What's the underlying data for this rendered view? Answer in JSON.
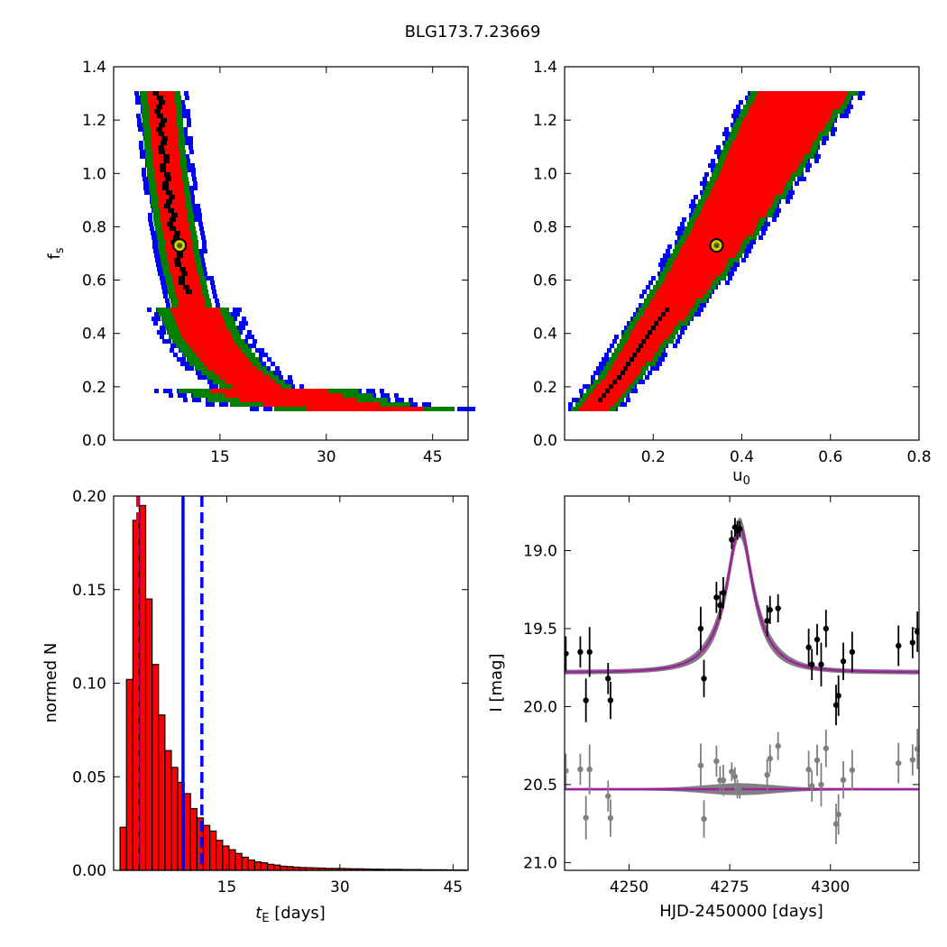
{
  "figure_title": "BLG173.7.23669",
  "chart_data": [
    {
      "id": "panel-fs-vs-tE",
      "type": "heatmap",
      "xlabel": "",
      "ylabel": "f_s",
      "xlim": [
        0,
        50
      ],
      "ylim": [
        0,
        1.4
      ],
      "xticks": [
        15,
        30,
        45
      ],
      "yticks": [
        0.0,
        0.2,
        0.4,
        0.6,
        0.8,
        1.0,
        1.2,
        1.4
      ],
      "ytick_labels": [
        "0.0",
        "0.2",
        "0.4",
        "0.6",
        "0.8",
        "1.0",
        "1.2",
        "1.4"
      ],
      "levels": [
        "black",
        "red",
        "green",
        "blue"
      ],
      "best_fit": {
        "x": 9.3,
        "y": 0.73
      },
      "ridge": [
        [
          6.5,
          1.31
        ],
        [
          7.5,
          1.0
        ],
        [
          8.6,
          0.8
        ],
        [
          9.6,
          0.65
        ],
        [
          11,
          0.5
        ],
        [
          13,
          0.38
        ],
        [
          16,
          0.28
        ],
        [
          20,
          0.2
        ],
        [
          26,
          0.15
        ],
        [
          32,
          0.12
        ],
        [
          40,
          0.115
        ],
        [
          46,
          0.105
        ]
      ]
    },
    {
      "id": "panel-fs-vs-u0",
      "type": "heatmap",
      "xlabel": "u_0",
      "ylabel": "",
      "xlim": [
        0.0,
        0.8
      ],
      "ylim": [
        0,
        1.4
      ],
      "xticks": [
        0.2,
        0.4,
        0.6,
        0.8
      ],
      "xtick_labels": [
        "0.2",
        "0.4",
        "0.6",
        "0.8"
      ],
      "yticks": [
        0.0,
        0.2,
        0.4,
        0.6,
        0.8,
        1.0,
        1.2,
        1.4
      ],
      "ytick_labels": [
        "0.0",
        "0.2",
        "0.4",
        "0.6",
        "0.8",
        "1.0",
        "1.2",
        "1.4"
      ],
      "levels": [
        "black",
        "red",
        "green",
        "blue"
      ],
      "best_fit": {
        "x": 0.343,
        "y": 0.73
      },
      "ridge": [
        [
          0.06,
          0.11
        ],
        [
          0.13,
          0.25
        ],
        [
          0.2,
          0.42
        ],
        [
          0.28,
          0.6
        ],
        [
          0.35,
          0.78
        ],
        [
          0.42,
          0.97
        ],
        [
          0.49,
          1.18
        ],
        [
          0.54,
          1.31
        ]
      ]
    },
    {
      "id": "panel-tE-histogram",
      "type": "bar",
      "xlabel": "t_E [days]",
      "ylabel": "normed N",
      "xlim": [
        0,
        47
      ],
      "ylim": [
        0,
        0.2
      ],
      "xticks": [
        15,
        30,
        45
      ],
      "yticks": [
        0.0,
        0.05,
        0.1,
        0.15,
        0.2
      ],
      "ytick_labels": [
        "0.00",
        "0.05",
        "0.10",
        "0.15",
        "0.20"
      ],
      "bin_width": 0.85,
      "bin_start": 0.85,
      "values": [
        0.023,
        0.102,
        0.187,
        0.195,
        0.145,
        0.11,
        0.083,
        0.064,
        0.055,
        0.047,
        0.041,
        0.033,
        0.028,
        0.024,
        0.021,
        0.016,
        0.013,
        0.011,
        0.009,
        0.007,
        0.0055,
        0.0045,
        0.004,
        0.0032,
        0.0028,
        0.0022,
        0.002,
        0.0017,
        0.0015,
        0.0014,
        0.0013,
        0.0012,
        0.001,
        0.001,
        0.001,
        0.0009,
        0.0008,
        0.0008,
        0.0007,
        0.0006,
        0.0006,
        0.0005,
        0.0005,
        0.0005,
        0.0004,
        0.0004,
        0.0004,
        0.0003,
        0.0003,
        0.0003,
        0.0003,
        0.0002,
        0.0002,
        0.0002
      ],
      "median": 9.2,
      "median_color": "#0000ff",
      "red_dashed": 3.2,
      "blue_dashed_low": 3.3,
      "blue_dashed_high": 11.7
    },
    {
      "id": "panel-lightcurve",
      "type": "scatter",
      "xlabel": "HJD-2450000 [days]",
      "ylabel": "I [mag]",
      "xlim": [
        4234,
        4322
      ],
      "ylim": [
        21.05,
        18.65
      ],
      "xticks": [
        4250,
        4275,
        4300
      ],
      "yticks": [
        19.0,
        19.5,
        20.0,
        20.5,
        21.0
      ],
      "ytick_labels": [
        "19.0",
        "19.5",
        "20.0",
        "20.5",
        "21.0"
      ],
      "model": {
        "baseline": 19.78,
        "peak": 18.85,
        "t0": 4277.5,
        "tE": 9.3,
        "u0": 0.343,
        "fs": 0.73
      },
      "residual_offset": 20.53,
      "observations": [
        {
          "t": 4234.3,
          "mag": 19.66,
          "err": 0.11
        },
        {
          "t": 4237.9,
          "mag": 19.65,
          "err": 0.1
        },
        {
          "t": 4239.3,
          "mag": 19.96,
          "err": 0.14
        },
        {
          "t": 4240.2,
          "mag": 19.65,
          "err": 0.16
        },
        {
          "t": 4244.8,
          "mag": 19.82,
          "err": 0.1
        },
        {
          "t": 4245.4,
          "mag": 19.96,
          "err": 0.12
        },
        {
          "t": 4267.8,
          "mag": 19.5,
          "err": 0.14
        },
        {
          "t": 4268.6,
          "mag": 19.82,
          "err": 0.12
        },
        {
          "t": 4271.7,
          "mag": 19.3,
          "err": 0.1
        },
        {
          "t": 4272.6,
          "mag": 19.35,
          "err": 0.09
        },
        {
          "t": 4273.4,
          "mag": 19.27,
          "err": 0.1
        },
        {
          "t": 4275.5,
          "mag": 18.93,
          "err": 0.06
        },
        {
          "t": 4276.3,
          "mag": 18.85,
          "err": 0.06
        },
        {
          "t": 4276.9,
          "mag": 18.87,
          "err": 0.06
        },
        {
          "t": 4277.5,
          "mag": 18.86,
          "err": 0.05
        },
        {
          "t": 4284.3,
          "mag": 19.45,
          "err": 0.1
        },
        {
          "t": 4285.0,
          "mag": 19.38,
          "err": 0.09
        },
        {
          "t": 4287.0,
          "mag": 19.37,
          "err": 0.09
        },
        {
          "t": 4294.6,
          "mag": 19.62,
          "err": 0.12
        },
        {
          "t": 4295.4,
          "mag": 19.73,
          "err": 0.1
        },
        {
          "t": 4296.7,
          "mag": 19.57,
          "err": 0.1
        },
        {
          "t": 4297.7,
          "mag": 19.73,
          "err": 0.14
        },
        {
          "t": 4298.9,
          "mag": 19.5,
          "err": 0.12
        },
        {
          "t": 4301.4,
          "mag": 19.99,
          "err": 0.13
        },
        {
          "t": 4302.0,
          "mag": 19.93,
          "err": 0.13
        },
        {
          "t": 4303.2,
          "mag": 19.71,
          "err": 0.12
        },
        {
          "t": 4305.4,
          "mag": 19.65,
          "err": 0.13
        },
        {
          "t": 4316.9,
          "mag": 19.61,
          "err": 0.13
        },
        {
          "t": 4320.4,
          "mag": 19.59,
          "err": 0.1
        },
        {
          "t": 4321.6,
          "mag": 19.52,
          "err": 0.13
        },
        {
          "t": 4322.6,
          "mag": 19.51,
          "err": 0.15
        }
      ]
    }
  ]
}
